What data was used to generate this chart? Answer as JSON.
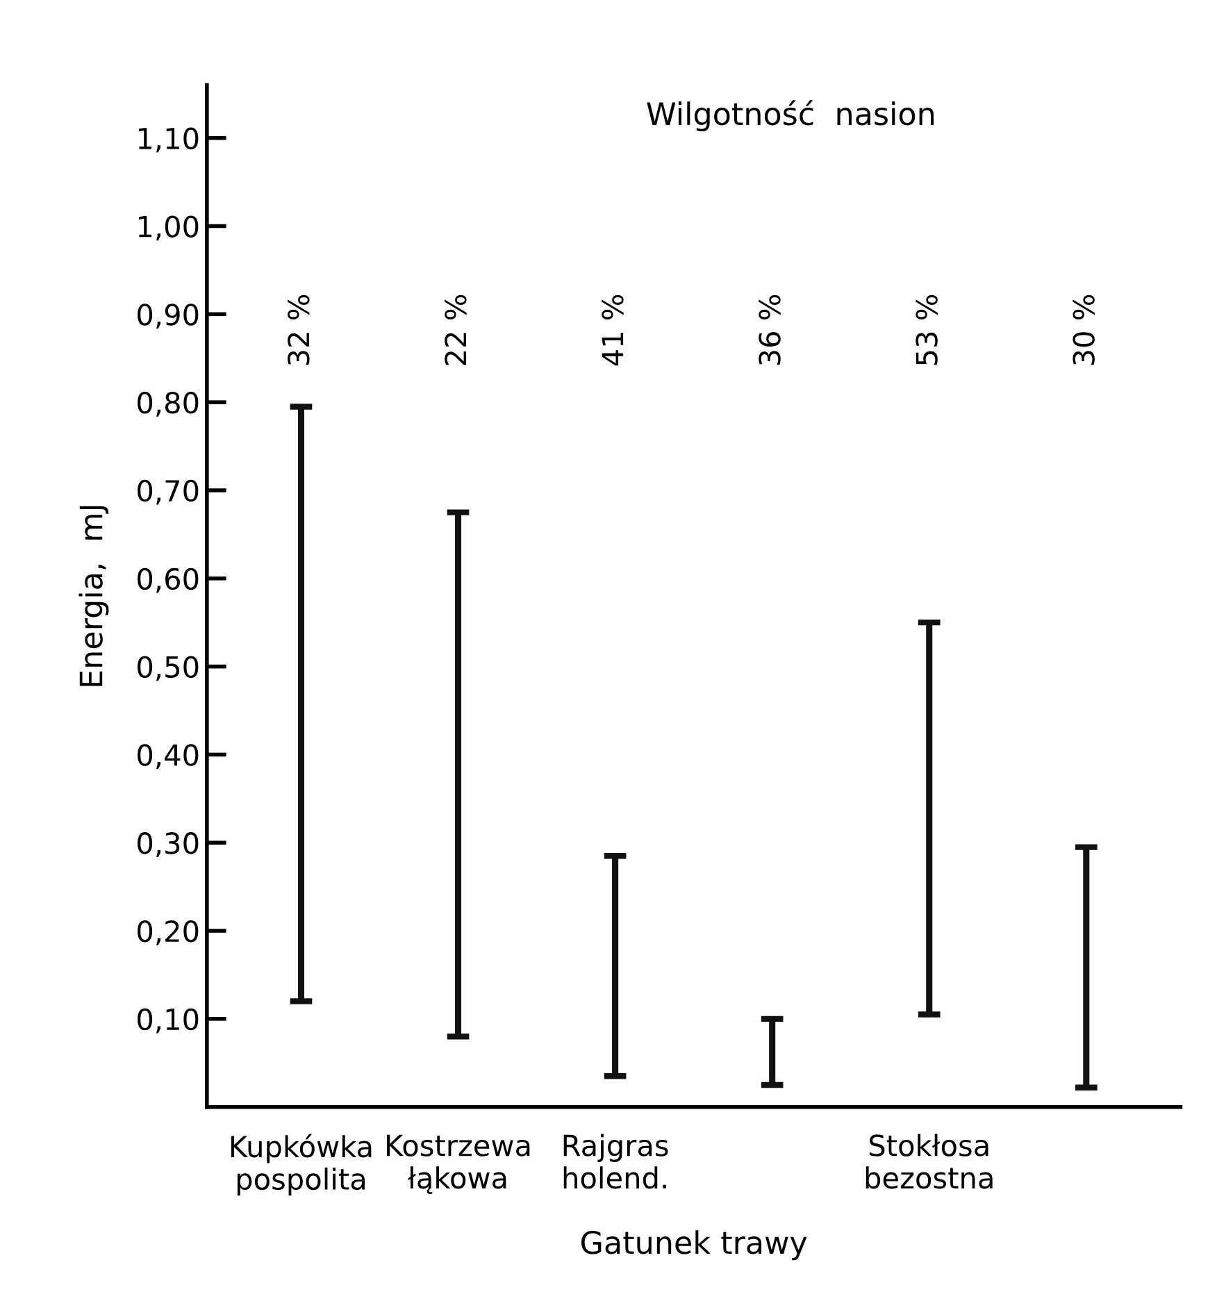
{
  "chart_data": {
    "type": "bar",
    "xlabel": "Gatunek trawy",
    "ylabel": "Energia,  mJ",
    "annotations": [
      "Wilgotność  nasion",
      "32 %",
      "22 %",
      "41 %",
      "36 %",
      "53 %",
      "30 %"
    ],
    "categories": [
      "Kupkówka\npospolita",
      "Kostrzewa\nłąkowa",
      "Rajgras\nholend.",
      null,
      "Stokłosa\nbezostna",
      null
    ],
    "base": [
      0.12,
      0.08,
      0.035,
      0.025,
      0.105,
      0.022
    ],
    "values": [
      0.675,
      0.595,
      0.25,
      0.075,
      0.445,
      0.273
    ],
    "color": "#111111",
    "ylim": [
      0,
      1.16
    ],
    "yticks": [
      {
        "value": 0.1,
        "label": "0,10"
      },
      {
        "value": 0.2,
        "label": "0,20"
      },
      {
        "value": 0.3,
        "label": "0,30"
      },
      {
        "value": 0.4,
        "label": "0,40"
      },
      {
        "value": 0.5,
        "label": "0,50"
      },
      {
        "value": 0.6,
        "label": "0,60"
      },
      {
        "value": 0.7,
        "label": "0,70"
      },
      {
        "value": 0.8,
        "label": "0,80"
      },
      {
        "value": 0.9,
        "label": "0,90"
      },
      {
        "value": 1.0,
        "label": "1,00"
      },
      {
        "value": 1.1,
        "label": "1,10"
      }
    ],
    "grid": false
  }
}
